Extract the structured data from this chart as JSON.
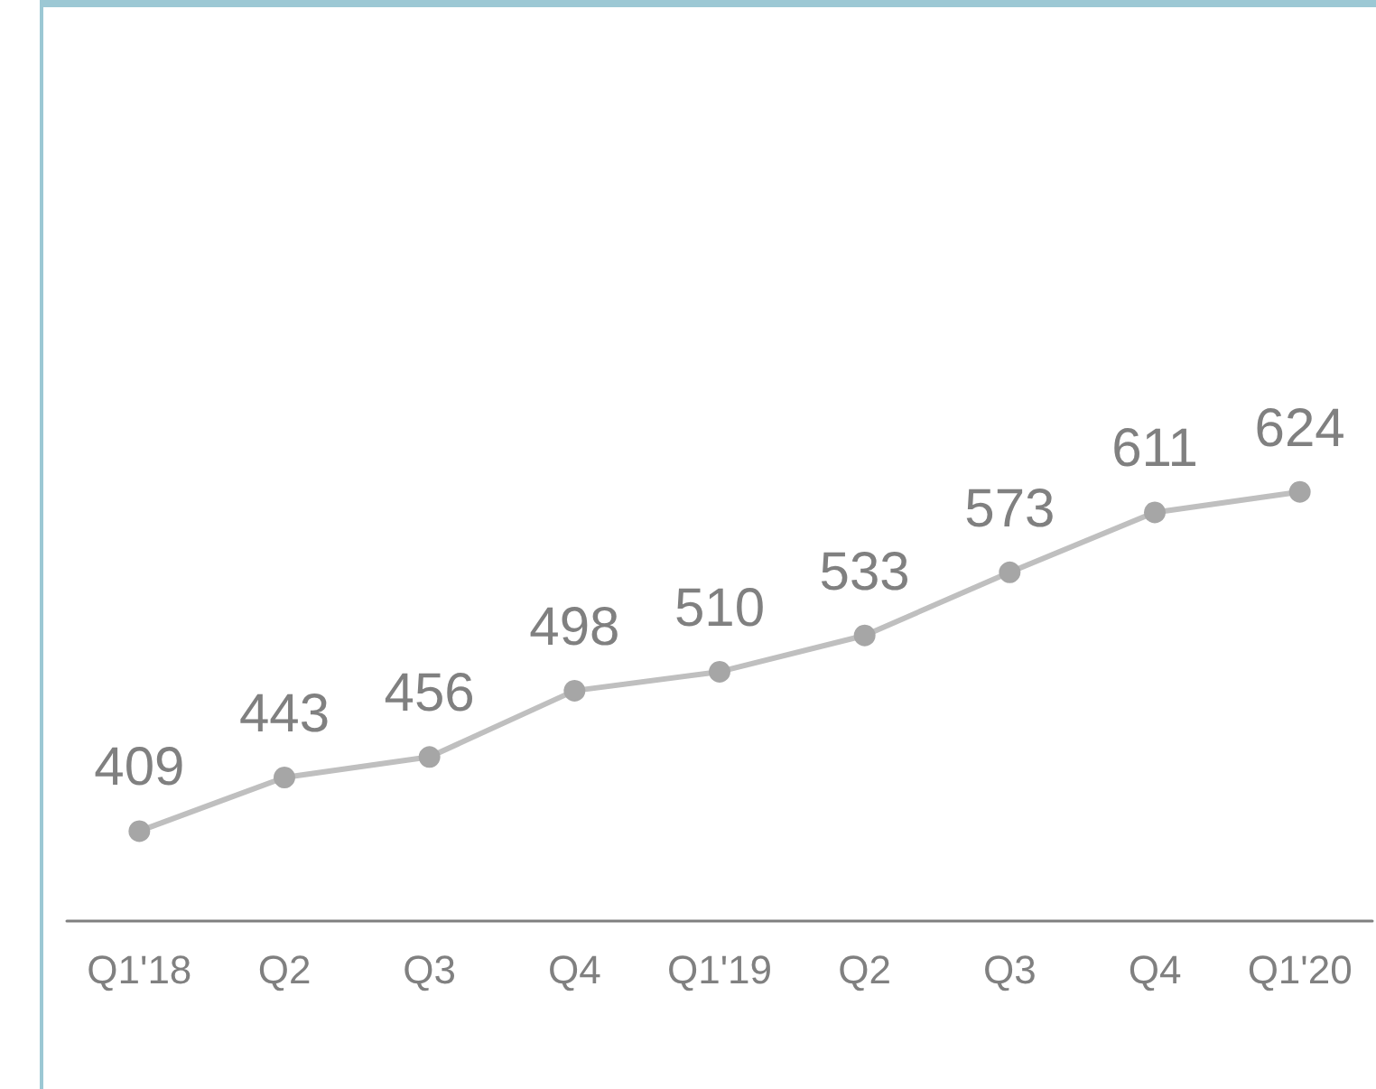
{
  "chart_data": {
    "type": "line",
    "categories": [
      "Q1'18",
      "Q2",
      "Q3",
      "Q4",
      "Q1'19",
      "Q2",
      "Q3",
      "Q4",
      "Q1'20"
    ],
    "series": [
      {
        "color": "#bfbfbf",
        "values": [
          409,
          443,
          456,
          498,
          510,
          533,
          573,
          611,
          624
        ]
      }
    ],
    "ylim": [
      352,
      930
    ],
    "data_labels": true,
    "marker": "circle",
    "line_style": "solid",
    "tick_labels": "x"
  }
}
